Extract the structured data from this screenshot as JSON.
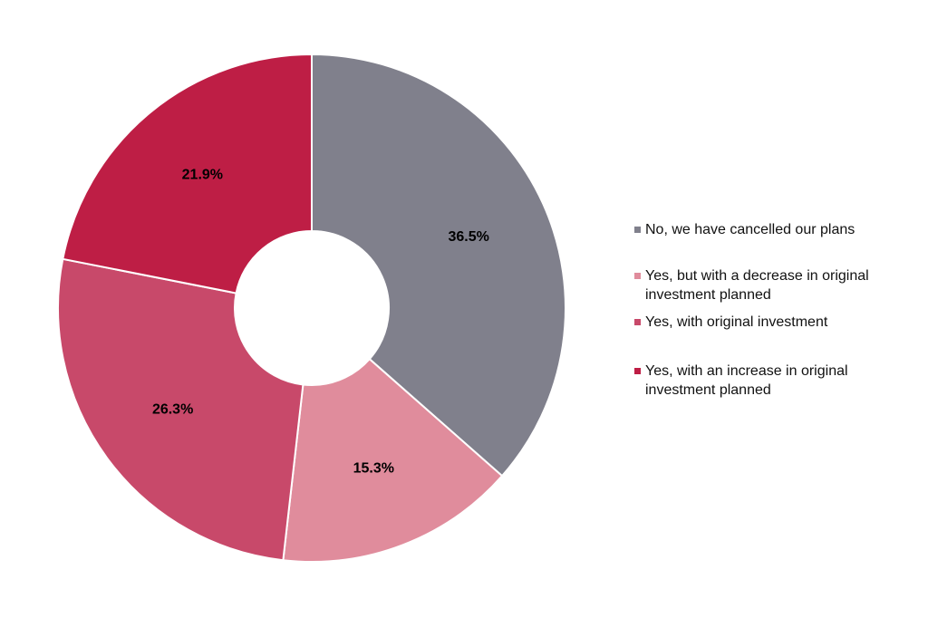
{
  "chart_data": {
    "type": "donut",
    "categories": [
      "No, we have cancelled our plans",
      "Yes, but with a decrease in original investment planned",
      "Yes, with original investment",
      "Yes, with an increase in original investment planned"
    ],
    "values": [
      36.5,
      15.3,
      26.3,
      21.9
    ],
    "value_labels": [
      "36.5%",
      "15.3%",
      "26.3%",
      "21.9%"
    ],
    "colors": [
      "#80808c",
      "#e08c9c",
      "#c8496a",
      "#be1e45"
    ],
    "legend": "right"
  }
}
